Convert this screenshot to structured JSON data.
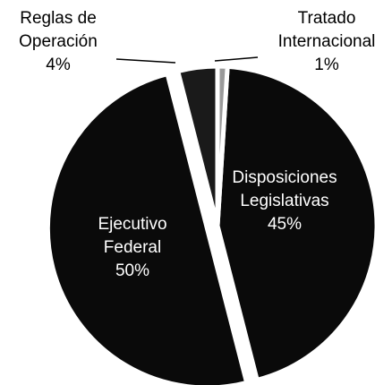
{
  "chart_data": {
    "type": "pie",
    "categories": [
      "Tratado Internacional",
      "Disposiciones Legislativas",
      "Ejecutivo Federal",
      "Reglas de Operación"
    ],
    "values": [
      1,
      45,
      50,
      4
    ],
    "value_labels": [
      "1%",
      "45%",
      "50%",
      "4%"
    ],
    "colors": [
      "#9a9a9a",
      "#0a0a0a",
      "#0a0a0a",
      "#1a1a1a"
    ]
  }
}
